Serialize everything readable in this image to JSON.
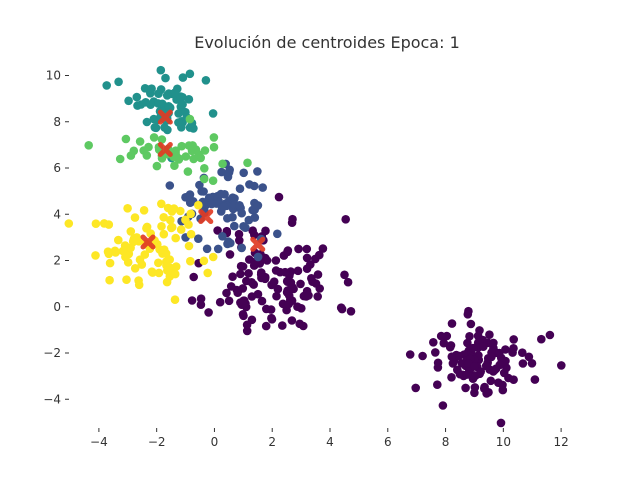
{
  "chart_data": {
    "type": "scatter",
    "title": "Evolución de centroides Epoca: 1",
    "xlabel": "",
    "ylabel": "",
    "xlim": [
      -5,
      13
    ],
    "ylim": [
      -5.2,
      10.8
    ],
    "xticks": [
      -4,
      -2,
      0,
      2,
      4,
      6,
      8,
      10,
      12
    ],
    "yticks": [
      10,
      8,
      6,
      4,
      2,
      0,
      -2,
      -4
    ],
    "xtick_labels": [
      "−4",
      "−2",
      "0",
      "2",
      "4",
      "6",
      "8",
      "10",
      "12"
    ],
    "ytick_labels": [
      "10",
      "8",
      "6",
      "4",
      "2",
      "0",
      "−2",
      "−4"
    ],
    "grid": false,
    "legend": "none",
    "clusters": [
      {
        "color": "#440154",
        "description": "purple",
        "center": [
          2.0,
          1.2
        ],
        "spread": [
          1.1,
          1.3
        ],
        "count": 130,
        "seed": 11
      },
      {
        "color": "#440154",
        "description": "purple",
        "center": [
          9.3,
          -2.4
        ],
        "spread": [
          0.95,
          0.85
        ],
        "count": 110,
        "seed": 12
      },
      {
        "color": "#3b528b",
        "description": "dark blue",
        "center": [
          0.3,
          4.3
        ],
        "spread": [
          0.8,
          0.9
        ],
        "count": 75,
        "seed": 13
      },
      {
        "color": "#21918c",
        "description": "teal",
        "center": [
          -1.4,
          8.7
        ],
        "spread": [
          0.8,
          0.7
        ],
        "count": 65,
        "seed": 14
      },
      {
        "color": "#5ec962",
        "description": "green",
        "center": [
          -1.2,
          6.7
        ],
        "spread": [
          1.0,
          0.55
        ],
        "count": 45,
        "seed": 15
      },
      {
        "color": "#fde725",
        "description": "yellow",
        "center": [
          -2.1,
          2.7
        ],
        "spread": [
          0.95,
          0.95
        ],
        "count": 85,
        "seed": 16
      }
    ],
    "centroids": {
      "marker": "X",
      "color": "#e03b24",
      "points": [
        {
          "x": -1.7,
          "y": 8.2
        },
        {
          "x": -1.7,
          "y": 6.8
        },
        {
          "x": -0.3,
          "y": 3.9
        },
        {
          "x": -2.3,
          "y": 2.8
        },
        {
          "x": 1.5,
          "y": 2.7
        }
      ]
    }
  }
}
